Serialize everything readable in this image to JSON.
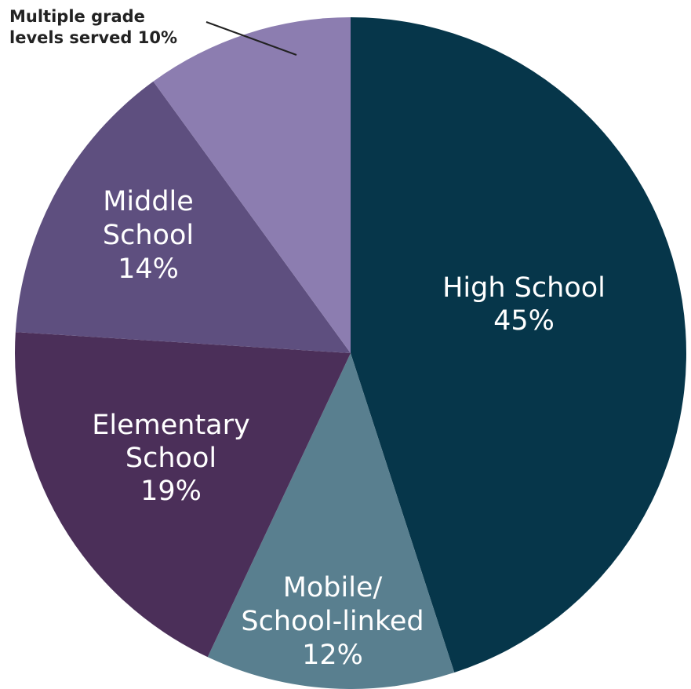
{
  "chart_data": {
    "type": "pie",
    "title": "",
    "slices": [
      {
        "label": [
          "High School",
          "45%"
        ],
        "value": 45,
        "color": "#06364a"
      },
      {
        "label": [
          "Mobile/",
          "School-linked",
          "12%"
        ],
        "value": 12,
        "color": "#597f8f"
      },
      {
        "label": [
          "Elementary",
          "School",
          "19%"
        ],
        "value": 19,
        "color": "#4b2f59"
      },
      {
        "label": [
          "Middle",
          "School",
          "14%"
        ],
        "value": 14,
        "color": "#5e4f7f"
      },
      {
        "label": [
          "Multiple grade",
          "levels served 10%"
        ],
        "value": 10,
        "color": "#8c7db0",
        "label_outside": true
      }
    ]
  }
}
